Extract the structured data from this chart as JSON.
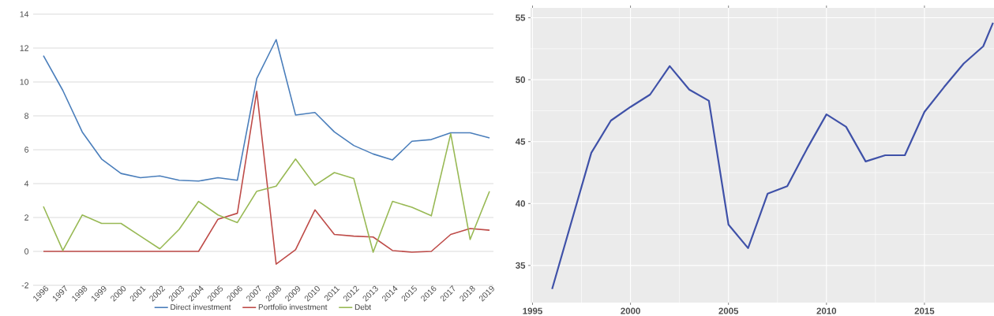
{
  "chart_data": [
    {
      "type": "line",
      "categories": [
        "1996",
        "1997",
        "1998",
        "1999",
        "2000",
        "2001",
        "2002",
        "2003",
        "2004",
        "2005",
        "2006",
        "2007",
        "2008",
        "2009",
        "2010",
        "2011",
        "2012",
        "2013",
        "2014",
        "2015",
        "2016",
        "2017",
        "2018",
        "2019"
      ],
      "series": [
        {
          "name": "Direct investment",
          "color": "#4a7ebb",
          "values": [
            11.55,
            9.5,
            7.05,
            5.45,
            4.6,
            4.35,
            4.45,
            4.2,
            4.15,
            4.35,
            4.2,
            10.2,
            12.5,
            8.05,
            8.2,
            7.05,
            6.25,
            5.75,
            5.4,
            6.5,
            6.6,
            7.0,
            7.0,
            6.7
          ]
        },
        {
          "name": "Portfolio investment",
          "color": "#be4b48",
          "values": [
            0,
            0,
            0,
            0,
            0,
            0,
            0,
            0,
            0,
            1.9,
            2.25,
            9.45,
            -0.75,
            0.1,
            2.45,
            1.0,
            0.9,
            0.85,
            0.05,
            -0.05,
            0.0,
            1.0,
            1.35,
            1.25
          ]
        },
        {
          "name": "Debt",
          "color": "#98b954",
          "values": [
            2.65,
            0.05,
            2.15,
            1.65,
            1.65,
            0.9,
            0.15,
            1.3,
            2.95,
            2.15,
            1.7,
            3.55,
            3.85,
            5.45,
            3.9,
            4.65,
            4.3,
            -0.05,
            2.95,
            2.6,
            2.1,
            6.95,
            0.7,
            3.55
          ]
        }
      ],
      "ylim": [
        -2,
        14
      ],
      "yticks": [
        -2,
        0,
        2,
        4,
        6,
        8,
        10,
        12,
        14
      ],
      "grid": "y",
      "legend": "bottom"
    },
    {
      "type": "line",
      "x": [
        1996,
        1997,
        1998,
        1999,
        2000,
        2001,
        2002,
        2003,
        2004,
        2005,
        2006,
        2007,
        2008,
        2009,
        2010,
        2011,
        2012,
        2013,
        2014,
        2015,
        2016,
        2017,
        2018,
        2018.5
      ],
      "series": [
        {
          "color": "#3f51a8",
          "values": [
            33.1,
            38.6,
            44.1,
            46.7,
            47.8,
            48.8,
            51.1,
            49.2,
            48.3,
            38.3,
            36.4,
            40.8,
            41.4,
            44.4,
            47.2,
            46.2,
            43.4,
            43.9,
            43.9,
            47.4,
            49.4,
            51.3,
            52.7,
            54.6
          ]
        }
      ],
      "xlim": [
        1994.9,
        2018.55
      ],
      "ylim": [
        32.0,
        55.8
      ],
      "xticks": [
        1995,
        2000,
        2005,
        2010,
        2015
      ],
      "yticks": [
        35,
        40,
        45,
        50,
        55
      ],
      "grid": true
    }
  ]
}
